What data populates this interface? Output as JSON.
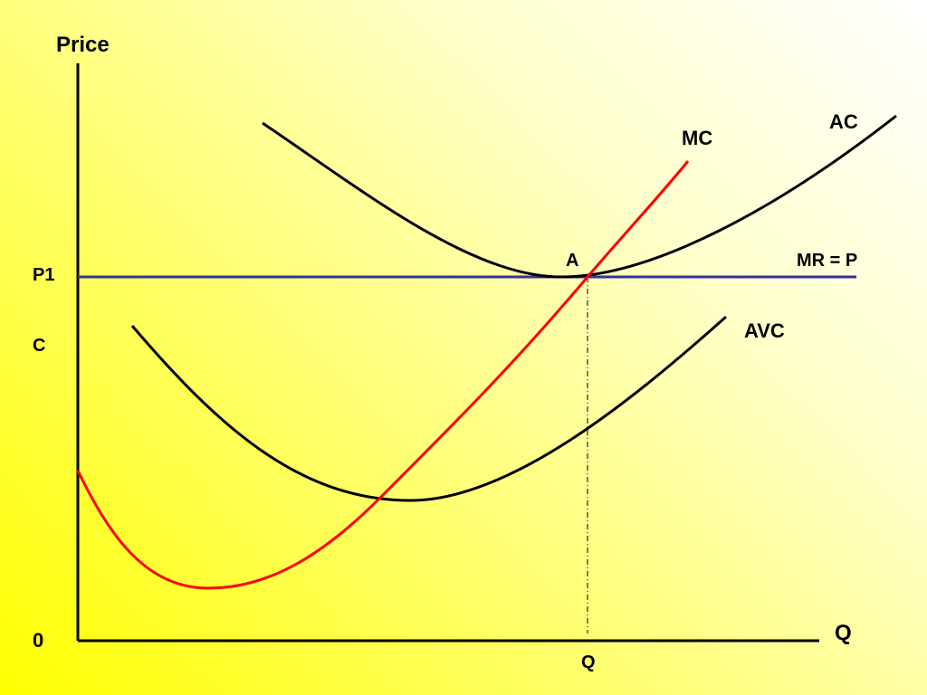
{
  "slide": {
    "background_colors": [
      "#ffff00",
      "#ffffff"
    ]
  },
  "chart_data": {
    "type": "line",
    "title": "",
    "ylabel": "Price",
    "xlabel": "Q",
    "origin_label": "0",
    "y_tick_labels": [
      "P1",
      "C"
    ],
    "x_tick_labels": [
      "Q"
    ],
    "point_label": "A",
    "series": [
      {
        "name": "AC",
        "color": "#000000"
      },
      {
        "name": "MC",
        "color": "#ff0000"
      },
      {
        "name": "AVC",
        "color": "#000000"
      },
      {
        "name": "MR = P",
        "color": "#333399"
      }
    ],
    "grid": false,
    "legend": "none"
  }
}
